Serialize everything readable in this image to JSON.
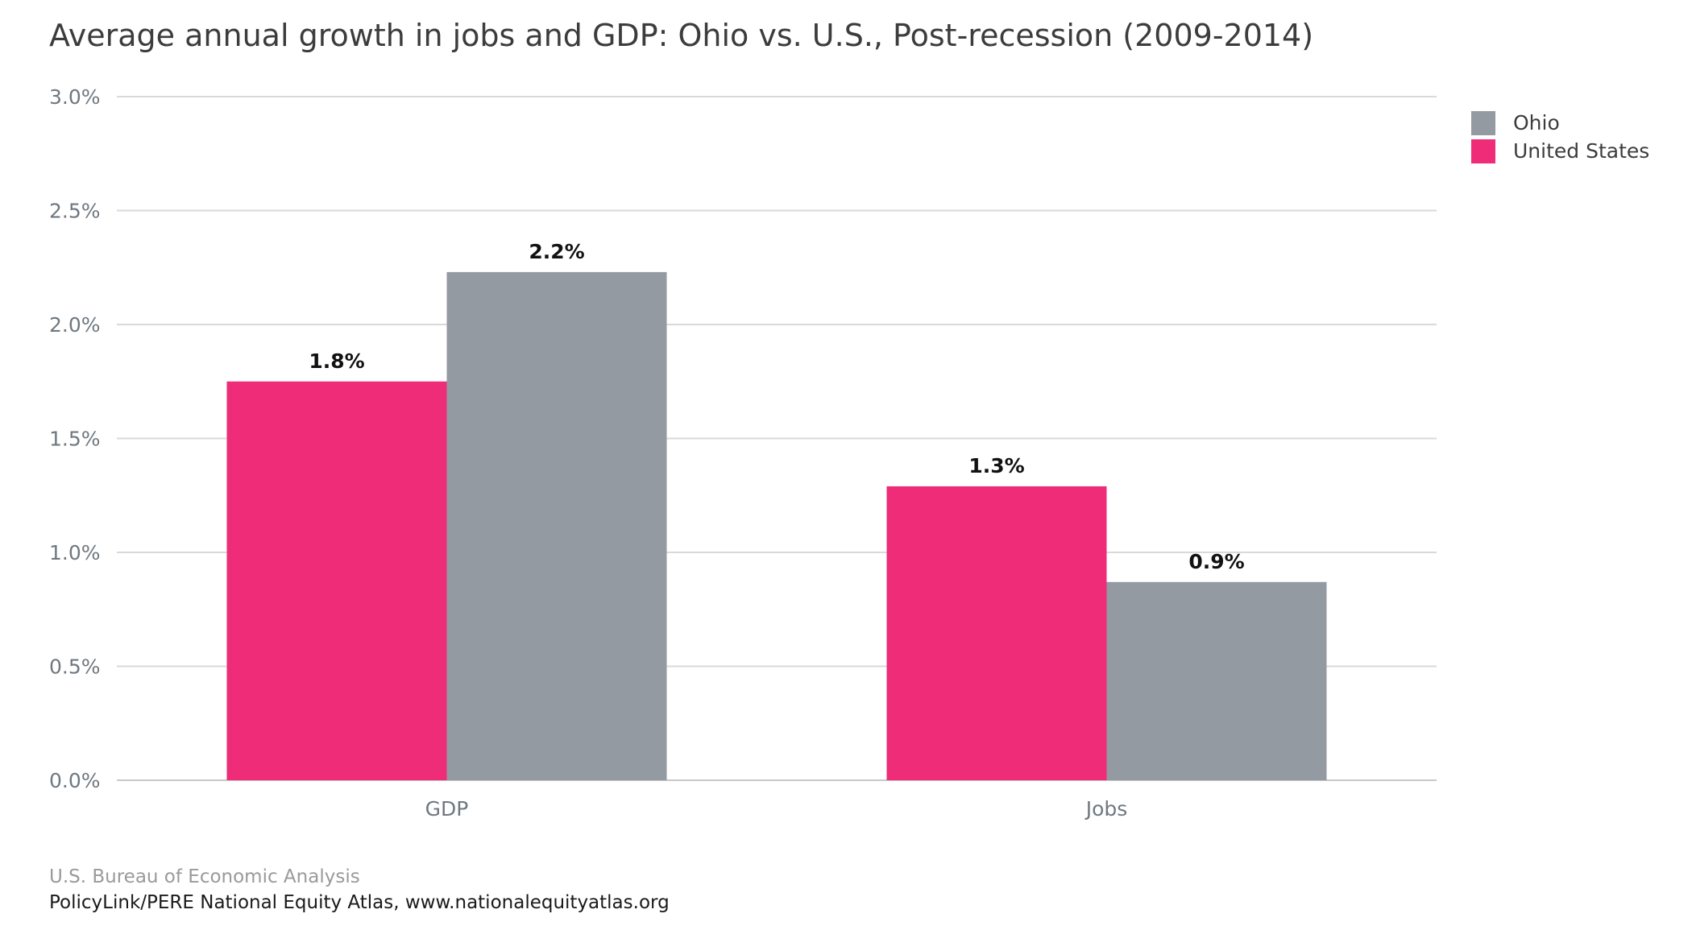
{
  "chart_data": {
    "type": "bar",
    "title": "Average annual growth in jobs and GDP: Ohio vs. U.S., Post-recession (2009-2014)",
    "xlabel": "",
    "ylabel": "",
    "categories": [
      "GDP",
      "Jobs"
    ],
    "series": [
      {
        "name": "United States",
        "values": [
          1.75,
          1.29
        ],
        "labels": [
          "1.8%",
          "1.3%"
        ],
        "color": "#ee2c77"
      },
      {
        "name": "Ohio",
        "values": [
          2.23,
          0.87
        ],
        "labels": [
          "2.2%",
          "0.9%"
        ],
        "color": "#939aa1"
      }
    ],
    "ylim": [
      0,
      3
    ],
    "yticks": [
      0,
      0.5,
      1,
      1.5,
      2,
      2.5,
      3
    ],
    "ytick_labels": [
      "0.0%",
      "0.5%",
      "1.0%",
      "1.5%",
      "2.0%",
      "2.5%",
      "3.0%"
    ],
    "grid": true,
    "legend": {
      "placement": "top-right",
      "entries": [
        {
          "label": "Ohio",
          "color": "#939aa1"
        },
        {
          "label": "United States",
          "color": "#ee2c77"
        }
      ]
    }
  },
  "footer": {
    "source": "U.S. Bureau of Economic Analysis",
    "credit": "PolicyLink/PERE National Equity Atlas, www.nationalequityatlas.org"
  }
}
